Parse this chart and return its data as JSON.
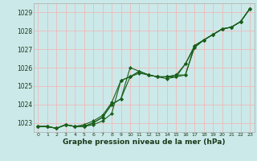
{
  "xlabel": "Graphe pression niveau de la mer (hPa)",
  "ylim": [
    1022.5,
    1029.5
  ],
  "xlim": [
    -0.5,
    23.5
  ],
  "yticks": [
    1023,
    1024,
    1025,
    1026,
    1027,
    1028,
    1029
  ],
  "xticks": [
    0,
    1,
    2,
    3,
    4,
    5,
    6,
    7,
    8,
    9,
    10,
    11,
    12,
    13,
    14,
    15,
    16,
    17,
    18,
    19,
    20,
    21,
    22,
    23
  ],
  "bg_color": "#cce9e9",
  "grid_color": "#f0b8b8",
  "line_color": "#1a5e1a",
  "line1": [
    1022.8,
    1022.8,
    1022.7,
    1022.9,
    1022.8,
    1022.8,
    1022.9,
    1023.1,
    1023.5,
    1025.3,
    1025.5,
    1025.8,
    1025.6,
    1025.5,
    1025.5,
    1025.6,
    1026.2,
    1027.1,
    1027.5,
    1027.8,
    1028.1,
    1028.2,
    1028.5,
    1029.2
  ],
  "line2": [
    1022.8,
    1022.8,
    1022.7,
    1022.9,
    1022.8,
    1022.8,
    1023.0,
    1023.3,
    1024.0,
    1024.3,
    1026.0,
    1025.8,
    1025.6,
    1025.5,
    1025.5,
    1025.5,
    1025.6,
    1027.1,
    1027.5,
    1027.8,
    1028.1,
    1028.2,
    1028.5,
    1029.2
  ],
  "line3": [
    1022.8,
    1022.8,
    1022.7,
    1022.9,
    1022.8,
    1022.8,
    1023.0,
    1023.3,
    1024.0,
    1024.3,
    1025.5,
    1025.8,
    1025.6,
    1025.5,
    1025.4,
    1025.5,
    1026.2,
    1027.2,
    1027.5,
    1027.8,
    1028.1,
    1028.2,
    1028.5,
    1029.2
  ],
  "line4": [
    1022.8,
    1022.8,
    1022.7,
    1022.9,
    1022.8,
    1022.9,
    1023.1,
    1023.4,
    1024.1,
    1025.3,
    1025.5,
    1025.7,
    1025.6,
    1025.5,
    1025.5,
    1025.6,
    1025.6,
    1027.2,
    1027.5,
    1027.8,
    1028.1,
    1028.2,
    1028.5,
    1029.2
  ],
  "ytick_fontsize": 5.5,
  "xtick_fontsize": 4.5,
  "xlabel_fontsize": 6.5
}
